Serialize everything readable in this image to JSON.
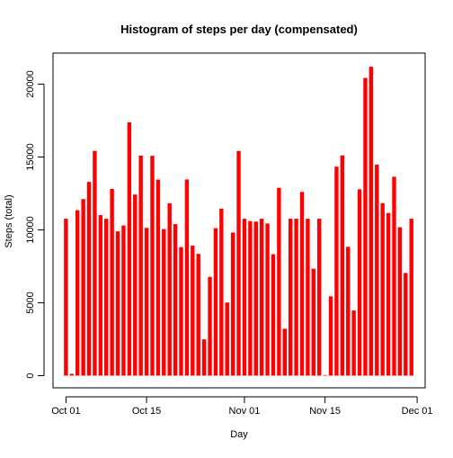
{
  "chart_data": {
    "type": "bar",
    "title": "Histogram of steps per day (compensated)",
    "xlabel": "Day",
    "ylabel": "Steps (total)",
    "xlim": [
      "2012-09-30",
      "2012-12-01"
    ],
    "ylim": [
      0,
      22000
    ],
    "x_ticks": [
      {
        "date": "2012-10-01",
        "label": "Oct 01"
      },
      {
        "date": "2012-10-15",
        "label": "Oct 15"
      },
      {
        "date": "2012-11-01",
        "label": "Nov 01"
      },
      {
        "date": "2012-11-15",
        "label": "Nov 15"
      },
      {
        "date": "2012-12-01",
        "label": "Dec 01"
      }
    ],
    "y_ticks": [
      0,
      5000,
      10000,
      15000,
      20000
    ],
    "grid": false,
    "legend": "none",
    "bar_color": "#ff0000",
    "series": [
      {
        "x": [
          "2012-10-01",
          "2012-10-02",
          "2012-10-03",
          "2012-10-04",
          "2012-10-05",
          "2012-10-06",
          "2012-10-07",
          "2012-10-08",
          "2012-10-09",
          "2012-10-10",
          "2012-10-11",
          "2012-10-12",
          "2012-10-13",
          "2012-10-14",
          "2012-10-15",
          "2012-10-16",
          "2012-10-17",
          "2012-10-18",
          "2012-10-19",
          "2012-10-20",
          "2012-10-21",
          "2012-10-22",
          "2012-10-23",
          "2012-10-24",
          "2012-10-25",
          "2012-10-26",
          "2012-10-27",
          "2012-10-28",
          "2012-10-29",
          "2012-10-30",
          "2012-10-31",
          "2012-11-01",
          "2012-11-02",
          "2012-11-03",
          "2012-11-04",
          "2012-11-05",
          "2012-11-06",
          "2012-11-07",
          "2012-11-08",
          "2012-11-09",
          "2012-11-10",
          "2012-11-11",
          "2012-11-12",
          "2012-11-13",
          "2012-11-14",
          "2012-11-15",
          "2012-11-16",
          "2012-11-17",
          "2012-11-18",
          "2012-11-19",
          "2012-11-20",
          "2012-11-21",
          "2012-11-22",
          "2012-11-23",
          "2012-11-24",
          "2012-11-25",
          "2012-11-26",
          "2012-11-27",
          "2012-11-28",
          "2012-11-29",
          "2012-11-30"
        ],
        "values": [
          10766,
          126,
          11352,
          12116,
          13294,
          15420,
          11015,
          10766,
          12811,
          9900,
          10304,
          17382,
          12426,
          15098,
          10139,
          15084,
          13452,
          10056,
          11829,
          10395,
          8821,
          13460,
          8918,
          8355,
          2492,
          6778,
          10119,
          11458,
          5018,
          9819,
          15414,
          10766,
          10600,
          10571,
          10766,
          10439,
          8334,
          12883,
          3219,
          10766,
          10766,
          12608,
          10765,
          7336,
          10766,
          41,
          5441,
          14339,
          15110,
          8841,
          4472,
          12787,
          20427,
          21194,
          14478,
          11834,
          11162,
          13646,
          10183,
          7047,
          10766
        ]
      }
    ]
  }
}
